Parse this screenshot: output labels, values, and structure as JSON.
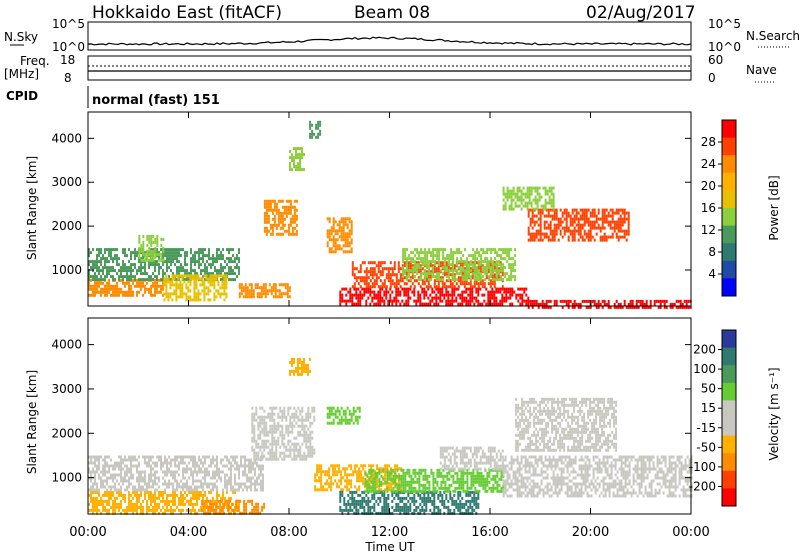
{
  "header": {
    "title": "Hokkaido East (fitACF)",
    "beam": "Beam 08",
    "date": "02/Aug/2017"
  },
  "top_panels": {
    "nsky_label": "N.Sky",
    "nsky_ticks": [
      "10^5",
      "10^0"
    ],
    "nsearch_label": "N.Search",
    "nsearch_ticks": [
      "10^5",
      "10^0"
    ],
    "freq_label": "Freq.",
    "freq_unit": "[MHz]",
    "freq_ticks": [
      "18",
      "8"
    ],
    "nave_label": "Nave",
    "nave_ticks": [
      "60",
      "0"
    ],
    "cpid_label": "CPID",
    "cpid_value": "normal (fast) 151"
  },
  "chart_data": [
    {
      "type": "heatmap",
      "name": "power-panel",
      "xlabel": "Time UT",
      "ylabel": "Slant Range [km]",
      "x_ticks": [
        "00:00",
        "04:00",
        "08:00",
        "12:00",
        "16:00",
        "20:00",
        "00:00"
      ],
      "x_hours": [
        0,
        4,
        8,
        12,
        16,
        20,
        24
      ],
      "xlim": [
        0,
        24
      ],
      "y_ticks": [
        1000,
        2000,
        3000,
        4000
      ],
      "ylim": [
        180,
        4600
      ],
      "colorbar": {
        "label": "Power [dB]",
        "tick_labels": [
          "28",
          "24",
          "20",
          "16",
          "12",
          "8",
          "4"
        ],
        "colors": [
          "#ff0000",
          "#ff4000",
          "#ff8c00",
          "#ffb000",
          "#e8c000",
          "#8ccf3c",
          "#4a9a5c",
          "#2e7a70",
          "#204aa8",
          "#0000ff"
        ]
      },
      "regions": [
        {
          "t0": 0.0,
          "t1": 3.0,
          "r0": 400,
          "r1": 800,
          "color": "#ff8c00"
        },
        {
          "t0": 0.0,
          "t1": 6.0,
          "r0": 800,
          "r1": 1500,
          "color": "#4a9a5c"
        },
        {
          "t0": 3.0,
          "t1": 5.5,
          "r0": 350,
          "r1": 900,
          "color": "#e8c000"
        },
        {
          "t0": 2.0,
          "t1": 3.0,
          "r0": 1200,
          "r1": 1800,
          "color": "#8ccf3c"
        },
        {
          "t0": 7.0,
          "t1": 8.3,
          "r0": 1800,
          "r1": 2600,
          "color": "#ff8c00"
        },
        {
          "t0": 8.0,
          "t1": 8.6,
          "r0": 3300,
          "r1": 3800,
          "color": "#8ccf3c"
        },
        {
          "t0": 8.8,
          "t1": 9.2,
          "r0": 4000,
          "r1": 4400,
          "color": "#4a9a5c"
        },
        {
          "t0": 10.0,
          "t1": 17.5,
          "r0": 200,
          "r1": 600,
          "color": "#ff0000"
        },
        {
          "t0": 10.5,
          "t1": 16.5,
          "r0": 600,
          "r1": 1200,
          "color": "#ff4000"
        },
        {
          "t0": 12.5,
          "t1": 17.0,
          "r0": 800,
          "r1": 1500,
          "color": "#8ccf3c"
        },
        {
          "t0": 9.5,
          "t1": 10.5,
          "r0": 1400,
          "r1": 2200,
          "color": "#ff8c00"
        },
        {
          "t0": 17.5,
          "t1": 21.5,
          "r0": 1700,
          "r1": 2400,
          "color": "#ff4000"
        },
        {
          "t0": 16.5,
          "t1": 18.5,
          "r0": 2400,
          "r1": 2900,
          "color": "#8ccf3c"
        },
        {
          "t0": 17.5,
          "t1": 24.0,
          "r0": 180,
          "r1": 320,
          "color": "#ff0000"
        },
        {
          "t0": 6.0,
          "t1": 8.0,
          "r0": 400,
          "r1": 700,
          "color": "#ff8c00"
        }
      ]
    },
    {
      "type": "heatmap",
      "name": "velocity-panel",
      "xlabel": "Time UT",
      "ylabel": "Slant Range [km]",
      "x_ticks": [
        "00:00",
        "04:00",
        "08:00",
        "12:00",
        "16:00",
        "20:00",
        "00:00"
      ],
      "x_hours": [
        0,
        4,
        8,
        12,
        16,
        20,
        24
      ],
      "xlim": [
        0,
        24
      ],
      "y_ticks": [
        1000,
        2000,
        3000,
        4000
      ],
      "ylim": [
        180,
        4600
      ],
      "colorbar": {
        "label": "Velocity [m s⁻¹]",
        "tick_labels": [
          "200",
          "100",
          "50",
          "15",
          "-15",
          "-50",
          "-100",
          "-200"
        ],
        "colors": [
          "#2a3a9a",
          "#2e7a70",
          "#4a9a5c",
          "#66cc33",
          "#c8c8c0",
          "#c8c8c0",
          "#ffb000",
          "#ff8c00",
          "#ff4000",
          "#ff0000"
        ]
      },
      "regions": [
        {
          "t0": 0.0,
          "t1": 6.0,
          "r0": 200,
          "r1": 700,
          "color": "#ffb000"
        },
        {
          "t0": 0.0,
          "t1": 7.0,
          "r0": 700,
          "r1": 1500,
          "color": "#c8c8c0"
        },
        {
          "t0": 6.5,
          "t1": 9.0,
          "r0": 1400,
          "r1": 2600,
          "color": "#c8c8c0"
        },
        {
          "t0": 8.0,
          "t1": 8.8,
          "r0": 3300,
          "r1": 3700,
          "color": "#ffb000"
        },
        {
          "t0": 9.0,
          "t1": 12.5,
          "r0": 700,
          "r1": 1300,
          "color": "#ffb000"
        },
        {
          "t0": 10.0,
          "t1": 15.5,
          "r0": 200,
          "r1": 700,
          "color": "#2e7a70"
        },
        {
          "t0": 11.0,
          "t1": 16.5,
          "r0": 700,
          "r1": 1200,
          "color": "#66cc33"
        },
        {
          "t0": 14.0,
          "t1": 16.5,
          "r0": 1200,
          "r1": 1700,
          "color": "#c8c8c0"
        },
        {
          "t0": 16.5,
          "t1": 24.0,
          "r0": 600,
          "r1": 1500,
          "color": "#c8c8c0"
        },
        {
          "t0": 17.0,
          "t1": 21.0,
          "r0": 1600,
          "r1": 2800,
          "color": "#c8c8c0"
        },
        {
          "t0": 9.5,
          "t1": 10.8,
          "r0": 2200,
          "r1": 2600,
          "color": "#66cc33"
        },
        {
          "t0": 4.5,
          "t1": 7.0,
          "r0": 200,
          "r1": 500,
          "color": "#ff8c00"
        }
      ]
    }
  ]
}
